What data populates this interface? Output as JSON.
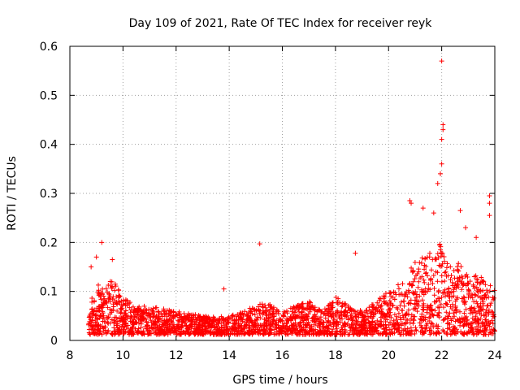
{
  "chart_data": {
    "type": "scatter",
    "title": "Day 109 of 2021, Rate Of TEC Index for receiver reyk",
    "xlabel": "GPS time / hours",
    "ylabel": "ROTI / TECUs",
    "xlim": [
      8,
      24
    ],
    "ylim": [
      0,
      0.6
    ],
    "xticks": [
      8,
      10,
      12,
      14,
      16,
      18,
      20,
      22,
      24
    ],
    "yticks": [
      0,
      0.1,
      0.2,
      0.3,
      0.4,
      0.5,
      0.6
    ],
    "xtick_labels": [
      "8",
      "10",
      "12",
      "14",
      "16",
      "18",
      "20",
      "22",
      "24"
    ],
    "ytick_labels": [
      "0",
      "0.1",
      "0.2",
      "0.3",
      "0.4",
      "0.5",
      "0.6"
    ],
    "grid": true,
    "marker": "+",
    "color": "#ff0000",
    "data_start_hour": 8.7,
    "envelope": {
      "description": "approximate upper envelope of the dense ROTI scatter (hour, ROTI)",
      "points": [
        [
          8.7,
          0.07
        ],
        [
          9.0,
          0.12
        ],
        [
          9.3,
          0.1
        ],
        [
          9.6,
          0.13
        ],
        [
          10.0,
          0.09
        ],
        [
          10.5,
          0.07
        ],
        [
          11.0,
          0.07
        ],
        [
          12.0,
          0.06
        ],
        [
          13.0,
          0.05
        ],
        [
          14.0,
          0.05
        ],
        [
          15.0,
          0.07
        ],
        [
          15.3,
          0.08
        ],
        [
          16.0,
          0.06
        ],
        [
          17.0,
          0.08
        ],
        [
          17.5,
          0.06
        ],
        [
          18.0,
          0.09
        ],
        [
          18.5,
          0.07
        ],
        [
          19.0,
          0.06
        ],
        [
          19.5,
          0.08
        ],
        [
          20.0,
          0.1
        ],
        [
          20.5,
          0.12
        ],
        [
          21.0,
          0.16
        ],
        [
          21.5,
          0.18
        ],
        [
          22.0,
          0.2
        ],
        [
          22.3,
          0.15
        ],
        [
          22.7,
          0.16
        ],
        [
          23.0,
          0.14
        ],
        [
          23.5,
          0.13
        ],
        [
          24.0,
          0.11
        ]
      ]
    },
    "outliers": [
      [
        9.2,
        0.2
      ],
      [
        9.6,
        0.165
      ],
      [
        9.0,
        0.17
      ],
      [
        8.8,
        0.15
      ],
      [
        15.15,
        0.197
      ],
      [
        18.75,
        0.178
      ],
      [
        13.8,
        0.105
      ],
      [
        20.8,
        0.285
      ],
      [
        20.85,
        0.28
      ],
      [
        21.3,
        0.27
      ],
      [
        21.85,
        0.32
      ],
      [
        21.95,
        0.34
      ],
      [
        22.0,
        0.57
      ],
      [
        22.05,
        0.44
      ],
      [
        22.05,
        0.43
      ],
      [
        22.0,
        0.41
      ],
      [
        22.0,
        0.36
      ],
      [
        21.7,
        0.26
      ],
      [
        22.7,
        0.265
      ],
      [
        23.8,
        0.295
      ],
      [
        23.8,
        0.28
      ],
      [
        23.8,
        0.255
      ],
      [
        23.3,
        0.21
      ],
      [
        22.9,
        0.23
      ]
    ]
  }
}
